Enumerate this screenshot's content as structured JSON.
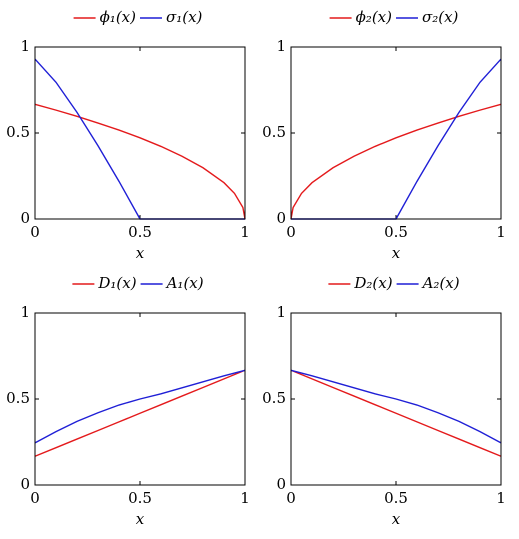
{
  "chart_data": [
    {
      "type": "line",
      "x_label": "x",
      "x": [
        0,
        0.1,
        0.2,
        0.3,
        0.4,
        0.5,
        0.6,
        0.7,
        0.8,
        0.9,
        0.95,
        0.99,
        1
      ],
      "series": [
        {
          "name": "ϕ₁(x)",
          "color": "#e41a1c",
          "values": [
            0.667,
            0.633,
            0.597,
            0.558,
            0.517,
            0.472,
            0.422,
            0.365,
            0.298,
            0.211,
            0.149,
            0.067,
            0
          ]
        },
        {
          "name": "σ₁(x)",
          "color": "#1f1fd6",
          "values": [
            0.93,
            0.795,
            0.62,
            0.426,
            0.219,
            0,
            0,
            0,
            0,
            0,
            0,
            0,
            0
          ]
        }
      ],
      "xlim": [
        0,
        1
      ],
      "ylim": [
        0,
        1
      ],
      "xticks": [
        0,
        0.5,
        1
      ],
      "yticks": [
        0,
        0.5,
        1
      ]
    },
    {
      "type": "line",
      "x_label": "x",
      "x": [
        0,
        0.01,
        0.05,
        0.1,
        0.2,
        0.3,
        0.4,
        0.5,
        0.6,
        0.7,
        0.8,
        0.9,
        1
      ],
      "series": [
        {
          "name": "ϕ₂(x)",
          "color": "#e41a1c",
          "values": [
            0,
            0.067,
            0.149,
            0.211,
            0.298,
            0.365,
            0.422,
            0.472,
            0.517,
            0.558,
            0.597,
            0.633,
            0.667
          ]
        },
        {
          "name": "σ₂(x)",
          "color": "#1f1fd6",
          "values": [
            0,
            0,
            0,
            0,
            0,
            0,
            0,
            0,
            0.219,
            0.426,
            0.62,
            0.795,
            0.93
          ]
        }
      ],
      "xlim": [
        0,
        1
      ],
      "ylim": [
        0,
        1
      ],
      "xticks": [
        0,
        0.5,
        1
      ],
      "yticks": [
        0,
        0.5,
        1
      ]
    },
    {
      "type": "line",
      "x_label": "x",
      "x": [
        0,
        0.1,
        0.2,
        0.3,
        0.4,
        0.5,
        0.6,
        0.7,
        0.8,
        0.9,
        1
      ],
      "series": [
        {
          "name": "D₁(x)",
          "color": "#e41a1c",
          "values": [
            0.167,
            0.217,
            0.267,
            0.317,
            0.367,
            0.417,
            0.467,
            0.517,
            0.567,
            0.617,
            0.667
          ]
        },
        {
          "name": "A₁(x)",
          "color": "#1f1fd6",
          "values": [
            0.245,
            0.31,
            0.37,
            0.42,
            0.465,
            0.5,
            0.53,
            0.565,
            0.6,
            0.635,
            0.667
          ]
        }
      ],
      "xlim": [
        0,
        1
      ],
      "ylim": [
        0,
        1
      ],
      "xticks": [
        0,
        0.5,
        1
      ],
      "yticks": [
        0,
        0.5,
        1
      ]
    },
    {
      "type": "line",
      "x_label": "x",
      "x": [
        0,
        0.1,
        0.2,
        0.3,
        0.4,
        0.5,
        0.6,
        0.7,
        0.8,
        0.9,
        1
      ],
      "series": [
        {
          "name": "D₂(x)",
          "color": "#e41a1c",
          "values": [
            0.667,
            0.617,
            0.567,
            0.517,
            0.467,
            0.417,
            0.367,
            0.317,
            0.267,
            0.217,
            0.167
          ]
        },
        {
          "name": "A₂(x)",
          "color": "#1f1fd6",
          "values": [
            0.667,
            0.635,
            0.6,
            0.565,
            0.53,
            0.5,
            0.465,
            0.42,
            0.37,
            0.31,
            0.245
          ]
        }
      ],
      "xlim": [
        0,
        1
      ],
      "ylim": [
        0,
        1
      ],
      "xticks": [
        0,
        0.5,
        1
      ],
      "yticks": [
        0,
        0.5,
        1
      ]
    }
  ]
}
